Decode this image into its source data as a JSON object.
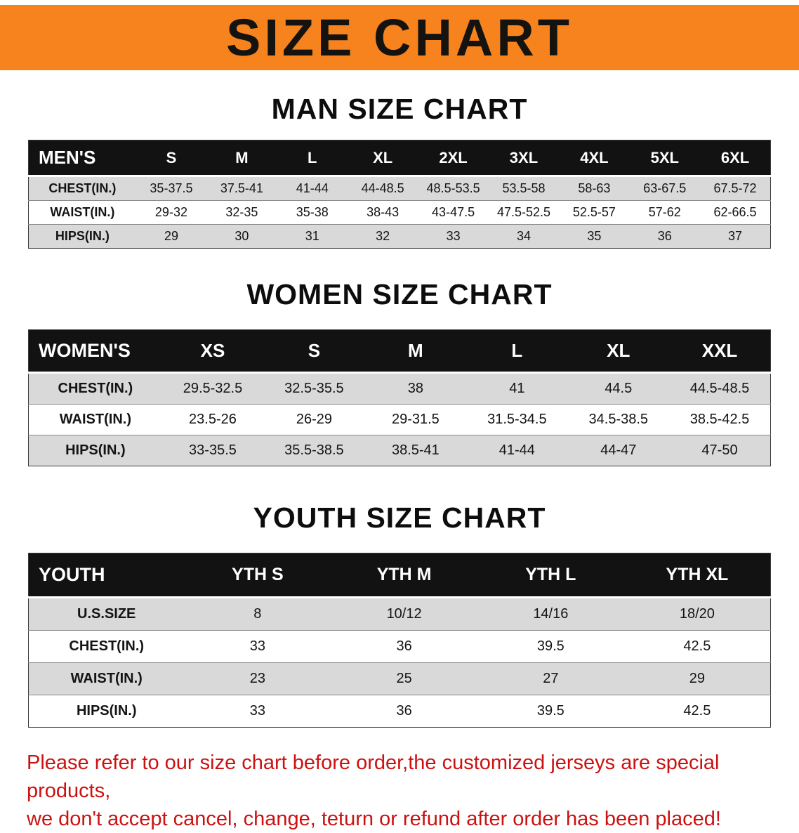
{
  "banner": {
    "title": "SIZE CHART"
  },
  "colors": {
    "banner-bg": "#f6831d",
    "header-bg": "#121212",
    "row-shade": "#d9d9d9",
    "footer-red": "#cc1111"
  },
  "chart_data": [
    {
      "type": "table",
      "title": "MAN SIZE CHART",
      "header": [
        "MEN'S",
        "S",
        "M",
        "L",
        "XL",
        "2XL",
        "3XL",
        "4XL",
        "5XL",
        "6XL"
      ],
      "rows": [
        [
          "CHEST(IN.)",
          "35-37.5",
          "37.5-41",
          "41-44",
          "44-48.5",
          "48.5-53.5",
          "53.5-58",
          "58-63",
          "63-67.5",
          "67.5-72"
        ],
        [
          "WAIST(IN.)",
          "29-32",
          "32-35",
          "35-38",
          "38-43",
          "43-47.5",
          "47.5-52.5",
          "52.5-57",
          "57-62",
          "62-66.5"
        ],
        [
          "HIPS(IN.)",
          "29",
          "30",
          "31",
          "32",
          "33",
          "34",
          "35",
          "36",
          "37"
        ]
      ]
    },
    {
      "type": "table",
      "title": "WOMEN SIZE CHART",
      "header": [
        "WOMEN'S",
        "XS",
        "S",
        "M",
        "L",
        "XL",
        "XXL"
      ],
      "rows": [
        [
          "CHEST(IN.)",
          "29.5-32.5",
          "32.5-35.5",
          "38",
          "41",
          "44.5",
          "44.5-48.5"
        ],
        [
          "WAIST(IN.)",
          "23.5-26",
          "26-29",
          "29-31.5",
          "31.5-34.5",
          "34.5-38.5",
          "38.5-42.5"
        ],
        [
          "HIPS(IN.)",
          "33-35.5",
          "35.5-38.5",
          "38.5-41",
          "41-44",
          "44-47",
          "47-50"
        ]
      ]
    },
    {
      "type": "table",
      "title": "YOUTH SIZE CHART",
      "header": [
        "YOUTH",
        "YTH S",
        "YTH M",
        "YTH L",
        "YTH XL"
      ],
      "rows": [
        [
          "U.S.SIZE",
          "8",
          "10/12",
          "14/16",
          "18/20"
        ],
        [
          "CHEST(IN.)",
          "33",
          "36",
          "39.5",
          "42.5"
        ],
        [
          "WAIST(IN.)",
          "23",
          "25",
          "27",
          "29"
        ],
        [
          "HIPS(IN.)",
          "33",
          "36",
          "39.5",
          "42.5"
        ]
      ]
    }
  ],
  "footer": {
    "line1": "Please refer to our size chart before order,the customized jerseys are special products,",
    "line2": "we don't accept cancel, change, teturn or refund after order has been placed!"
  }
}
